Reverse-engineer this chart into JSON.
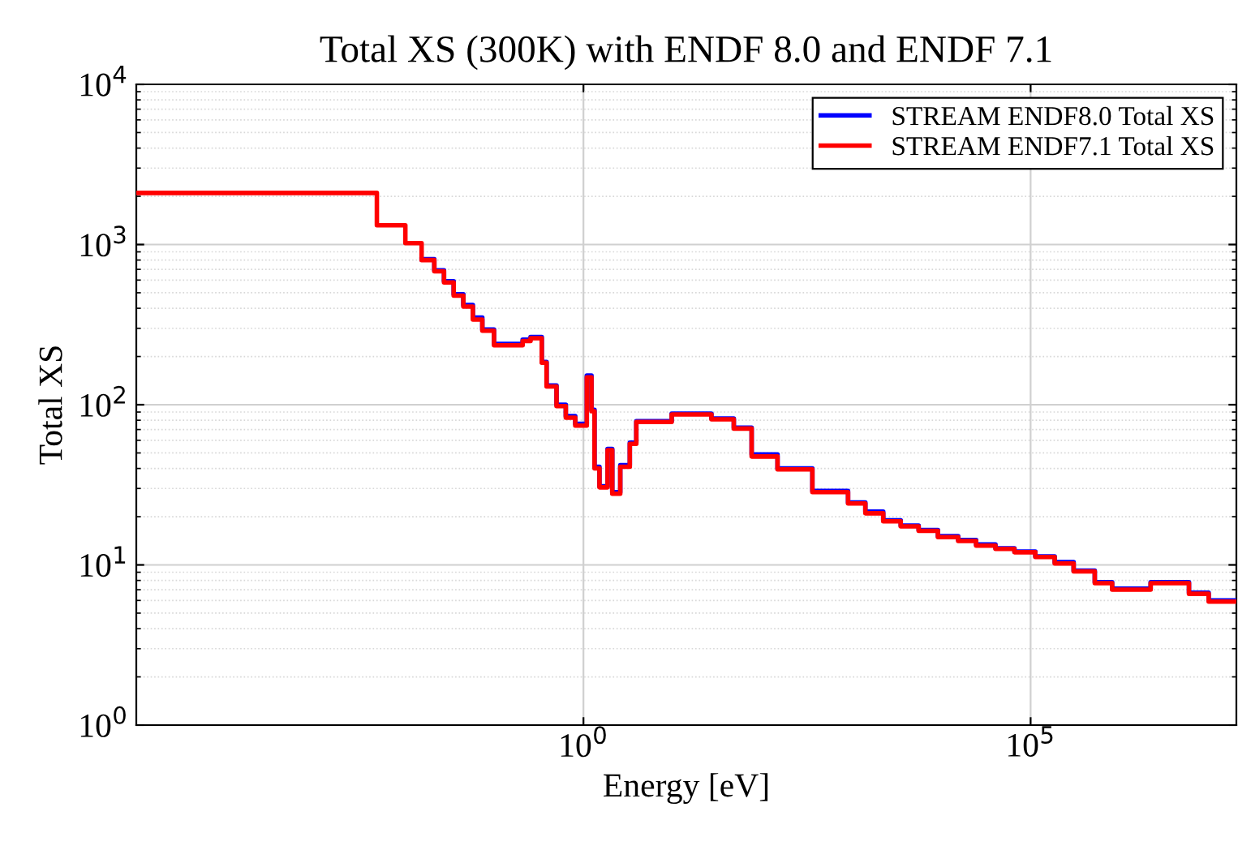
{
  "chart_data": {
    "type": "step",
    "title": "Total XS (300K) with ENDF 8.0 and ENDF 7.1",
    "xlabel": "Energy [eV]",
    "ylabel": "Total XS",
    "log": "xy",
    "grid": true,
    "legend": "top right",
    "line_style": "solid",
    "xlim": [
      1e-05,
      20000000.0
    ],
    "ylim": [
      1,
      10000
    ],
    "xticks": [
      {
        "value": 1,
        "label": "10$^{0}$"
      },
      {
        "value": 100000,
        "label": "10$^{5}$"
      }
    ],
    "yticks": [
      {
        "value": 1,
        "label": "10$^{0}$"
      },
      {
        "value": 10,
        "label": "10$^{1}$"
      },
      {
        "value": 100,
        "label": "10$^{2}$"
      },
      {
        "value": 1000,
        "label": "10$^{3}$"
      },
      {
        "value": 10000,
        "label": "10$^{4}$"
      }
    ],
    "series": [
      {
        "name": "STREAM ENDF8.0 Total XS",
        "color": "#0000ff",
        "x": [
          0.0155,
          0.0215,
          0.0276,
          0.0354,
          0.0454,
          0.058,
          0.074,
          0.1,
          0.209,
          0.256,
          0.342,
          0.387,
          0.5,
          0.635,
          0.81,
          1.09,
          1.23,
          1.33,
          1.51,
          1.86,
          2.1,
          2.58,
          3.3,
          3.9,
          9.7,
          27,
          48,
          76,
          148,
          363,
          910,
          1420,
          2250,
          3530,
          5600,
          9200,
          15500,
          24600,
          40500,
          66000,
          113000,
          186000,
          303000,
          522000,
          816000,
          2200000,
          5900000,
          9800000,
          20000000
        ],
        "values": [
          810,
          690,
          590,
          490,
          420,
          350,
          295,
          240,
          255,
          265,
          185,
          132,
          100,
          85,
          76,
          152,
          93,
          41,
          31,
          53,
          28.5,
          42,
          58,
          79,
          88,
          82,
          72,
          49,
          40,
          29,
          24.5,
          21.5,
          19,
          17.6,
          16.5,
          15.1,
          14.3,
          13.4,
          12.7,
          12.1,
          11.3,
          10.4,
          9.2,
          7.8,
          7.1,
          7.8,
          6.7,
          6.0,
          6.0
        ]
      },
      {
        "name": "STREAM ENDF7.1 Total XS",
        "color": "#ff0000",
        "x": [
          1e-05,
          0.0049,
          0.0102,
          0.0155,
          0.0215,
          0.0276,
          0.0354,
          0.0454,
          0.058,
          0.074,
          0.1,
          0.209,
          0.256,
          0.342,
          0.387,
          0.5,
          0.635,
          0.81,
          1.09,
          1.23,
          1.33,
          1.51,
          1.86,
          2.1,
          2.58,
          3.3,
          3.9,
          9.7,
          27,
          48,
          76,
          148,
          363,
          910,
          1420,
          2250,
          3530,
          5600,
          9200,
          15500,
          24600,
          40500,
          66000,
          113000,
          186000,
          303000,
          522000,
          816000,
          2200000,
          5900000,
          9800000,
          20000000
        ],
        "values": [
          2100,
          1320,
          1020,
          800,
          680,
          580,
          480,
          410,
          340,
          290,
          235,
          250,
          260,
          183,
          130,
          98,
          83,
          74,
          148,
          91,
          40,
          30.5,
          52,
          27.8,
          41,
          57,
          78,
          87,
          81,
          71,
          47.5,
          39.5,
          28.5,
          24.2,
          21,
          18.7,
          17.4,
          16.3,
          14.9,
          14.1,
          13.2,
          12.6,
          12,
          11.2,
          10.2,
          9.1,
          7.7,
          7.0,
          7.7,
          6.6,
          5.9,
          5.9
        ]
      }
    ]
  }
}
